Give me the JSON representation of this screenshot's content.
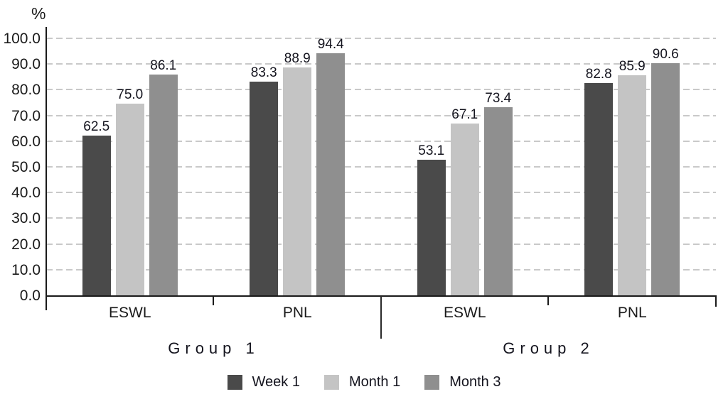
{
  "chart_data": {
    "type": "bar",
    "title": "",
    "ylabel": "%",
    "xlabel": "",
    "ylim": [
      0,
      100
    ],
    "ytick_step": 10,
    "ytick_labels": [
      "0.0",
      "10.0",
      "20.0",
      "30.0",
      "40.0",
      "50.0",
      "60.0",
      "70.0",
      "80.0",
      "90.0",
      "100.0"
    ],
    "grid": "dashed-horizontal",
    "legend_position": "bottom",
    "groups": [
      {
        "label": "Group 1",
        "categories": [
          {
            "label": "ESWL",
            "values": [
              62.5,
              75.0,
              86.1
            ]
          },
          {
            "label": "PNL",
            "values": [
              83.3,
              88.9,
              94.4
            ]
          }
        ]
      },
      {
        "label": "Group 2",
        "categories": [
          {
            "label": "ESWL",
            "values": [
              53.1,
              67.1,
              73.4
            ]
          },
          {
            "label": "PNL",
            "values": [
              82.8,
              85.9,
              90.6
            ]
          }
        ]
      }
    ],
    "series": [
      {
        "name": "Week 1",
        "color": "#4a4a4a",
        "values": [
          62.5,
          83.3,
          53.1,
          82.8
        ]
      },
      {
        "name": "Month 1",
        "color": "#c4c4c4",
        "values": [
          75.0,
          88.9,
          67.1,
          85.9
        ]
      },
      {
        "name": "Month 3",
        "color": "#8f8f8f",
        "values": [
          86.1,
          94.4,
          73.4,
          90.6
        ]
      }
    ],
    "colors": {
      "axis": "#1a1a1a",
      "gridline": "#c9c9c9",
      "text": "#14141e"
    }
  }
}
